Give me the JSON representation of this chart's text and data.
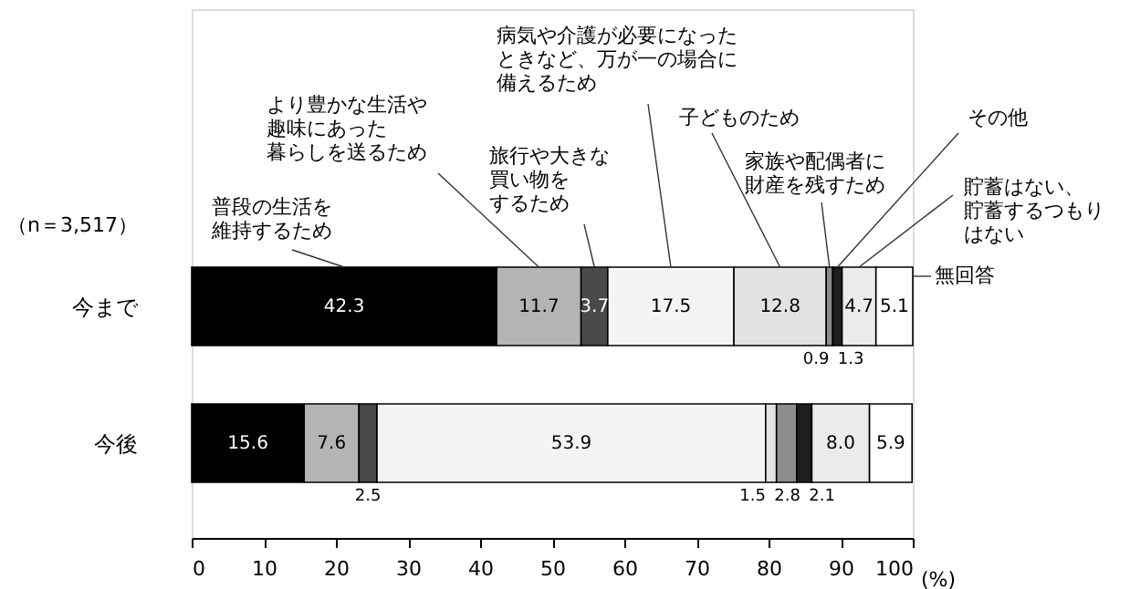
{
  "chart_data": {
    "type": "bar",
    "orientation": "horizontal",
    "stacked": true,
    "categories": [
      "今まで",
      "今後"
    ],
    "series": [
      {
        "name": "普段の生活を維持するため",
        "color": "#000000",
        "values": [
          42.3,
          15.6
        ],
        "value_labels": [
          "42.3",
          "15.6"
        ]
      },
      {
        "name": "より豊かな生活や趣味にあった暮らしを送るため",
        "color": "#b4b4b4",
        "values": [
          11.7,
          7.6
        ],
        "value_labels": [
          "11.7",
          "7.6"
        ]
      },
      {
        "name": "旅行や大きな買い物をするため",
        "color": "#4a4a4a",
        "values": [
          3.7,
          2.5
        ],
        "value_labels": [
          "3.7",
          "2.5"
        ]
      },
      {
        "name": "病気や介護が必要になったときなど、万が一の場合に備えるため",
        "color": "#f4f4f4",
        "values": [
          17.5,
          53.9
        ],
        "value_labels": [
          "17.5",
          "53.9"
        ]
      },
      {
        "name": "子どものため",
        "color": "#e2e2e2",
        "values": [
          12.8,
          1.5
        ],
        "value_labels": [
          "12.8",
          "1.5"
        ]
      },
      {
        "name": "家族や配偶者に財産を残すため",
        "color": "#8c8c8c",
        "values": [
          0.9,
          2.8
        ],
        "value_labels": [
          "0.9",
          "2.8"
        ]
      },
      {
        "name": "その他",
        "color": "#1e1e1e",
        "values": [
          1.3,
          2.1
        ],
        "value_labels": [
          "1.3",
          "2.1"
        ]
      },
      {
        "name": "貯蓄はない、貯蓄するつもりはない",
        "color": "#ebebeb",
        "values": [
          4.7,
          8.0
        ],
        "value_labels": [
          "4.7",
          "8.0"
        ]
      },
      {
        "name": "無回答",
        "color": "#ffffff",
        "values": [
          5.1,
          5.9
        ],
        "value_labels": [
          "5.1",
          "5.9"
        ]
      }
    ],
    "xlim": [
      0,
      100
    ],
    "xticks": [
      0,
      10,
      20,
      30,
      40,
      50,
      60,
      70,
      80,
      90,
      100
    ],
    "xlabel": "(%)",
    "grid": false,
    "annotations": [
      "（n＝3,517）"
    ]
  }
}
